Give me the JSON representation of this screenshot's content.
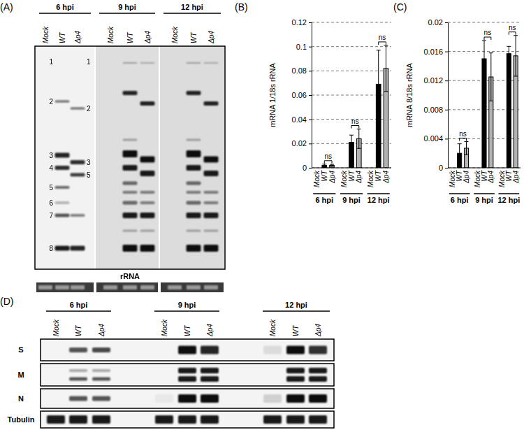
{
  "chart_data": [
    {
      "type": "bar",
      "title": "(B)",
      "ylabel": "mRNA 1/18s rRNA",
      "categories": [
        "Mock",
        "WT",
        "Δp4",
        "Mock",
        "WT",
        "Δp4",
        "Mock",
        "WT",
        "Δp4"
      ],
      "group_labels": [
        "6 hpi",
        "9 hpi",
        "12 hpi"
      ],
      "values": [
        0,
        0.002,
        0.002,
        0,
        0.021,
        0.024,
        0,
        0.069,
        0.082
      ],
      "errors": [
        null,
        0.001,
        0.0008,
        null,
        0.006,
        0.008,
        null,
        0.028,
        0.019
      ],
      "colors": [
        "#000000",
        "#000000",
        "#b3b3b3",
        "#000000",
        "#000000",
        "#b3b3b3",
        "#000000",
        "#000000",
        "#b3b3b3"
      ],
      "ylim": [
        0,
        0.12
      ],
      "yticks": [
        0,
        0.02,
        0.04,
        0.06,
        0.08,
        0.1,
        0.12
      ],
      "grid": true,
      "annotations": [
        "ns",
        "ns",
        "ns"
      ]
    },
    {
      "type": "bar",
      "title": "(C)",
      "ylabel": "mRNA 8/18s rRNA",
      "categories": [
        "Mock",
        "WT",
        "Δp4",
        "Mock",
        "WT",
        "Δp4",
        "Mock",
        "WT",
        "Δp4"
      ],
      "group_labels": [
        "6 hpi",
        "9 hpi",
        "12 hpi"
      ],
      "values": [
        0,
        0.002,
        0.0027,
        0,
        0.015,
        0.0125,
        0,
        0.0157,
        0.0154
      ],
      "errors": [
        null,
        0.0013,
        0.0009,
        null,
        0.0025,
        0.0033,
        null,
        0.001,
        0.0028
      ],
      "colors": [
        "#000000",
        "#000000",
        "#b3b3b3",
        "#000000",
        "#000000",
        "#b3b3b3",
        "#000000",
        "#000000",
        "#b3b3b3"
      ],
      "ylim": [
        0,
        0.02
      ],
      "yticks": [
        0,
        0.004,
        0.008,
        0.012,
        0.016,
        0.02
      ],
      "grid": true,
      "annotations": [
        "ns",
        "ns",
        "ns"
      ]
    }
  ],
  "blots": [
    {
      "panel_label": "(A)",
      "group_labels": [
        "6 hpi",
        "9 hpi",
        "12 hpi"
      ],
      "lanes": [
        "Mock",
        "WT",
        "Δp4"
      ],
      "band_labels": {
        "WT": [
          "1",
          "2",
          "3",
          "4",
          "5",
          "6",
          "7",
          "8"
        ],
        "Δp4": [
          "1",
          "2",
          "3",
          "5"
        ]
      },
      "rows": [
        "rRNA"
      ]
    },
    {
      "panel_label": "(D)",
      "group_labels": [
        "6 hpi",
        "9 hpi",
        "12 hpi"
      ],
      "lanes": [
        "Mock",
        "WT",
        "Δp4"
      ],
      "rows": [
        "S",
        "M",
        "N",
        "Tubulin"
      ]
    }
  ]
}
